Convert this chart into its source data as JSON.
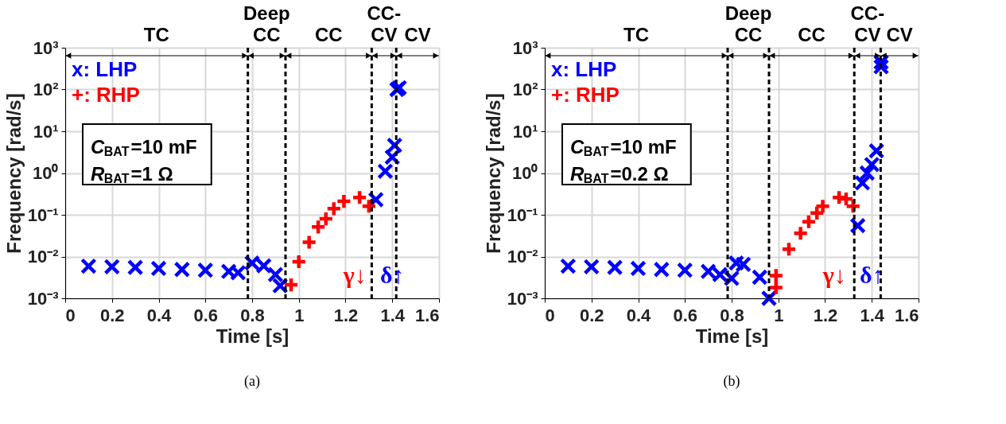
{
  "chart_data": [
    {
      "type": "scatter",
      "xlabel": "Time [s]",
      "ylabel": "Frequency [rad/s]",
      "log": "y",
      "grid": true,
      "legend": "top left",
      "xlim": [
        0,
        1.6
      ],
      "xticks": [
        0,
        0.2,
        0.4,
        0.6,
        0.8,
        1,
        1.2,
        1.4,
        1.6
      ],
      "ylim": [
        0.001,
        1000
      ],
      "yticks": [
        {
          "value": 0.001,
          "label": "10⁻³"
        },
        {
          "value": 0.01,
          "label": "10⁻²"
        },
        {
          "value": 0.1,
          "label": "10⁻¹"
        },
        {
          "value": 1,
          "label": "10⁰"
        },
        {
          "value": 10,
          "label": "10¹"
        },
        {
          "value": 100,
          "label": "10²"
        },
        {
          "value": 1000,
          "label": "10³"
        }
      ],
      "series": [
        {
          "name": "x: LHP",
          "color": "#0000ff",
          "marker": "cross",
          "x": [
            0.1,
            0.2,
            0.3,
            0.4,
            0.5,
            0.6,
            0.7,
            0.74,
            0.8,
            0.85,
            0.9,
            0.92,
            1.33,
            1.37,
            1.4,
            1.41,
            1.42,
            1.43
          ],
          "values": [
            0.0059,
            0.0057,
            0.0055,
            0.0052,
            0.0049,
            0.0047,
            0.0044,
            0.0041,
            0.007,
            0.006,
            0.0037,
            0.002,
            0.23,
            1.1,
            2.4,
            4.6,
            100,
            110
          ]
        },
        {
          "name": "+: RHP",
          "color": "#ff0000",
          "marker": "plus",
          "x": [
            0.967,
            1.0,
            1.044,
            1.083,
            1.116,
            1.15,
            1.193,
            1.26,
            1.3
          ],
          "values": [
            0.0021,
            0.0075,
            0.022,
            0.051,
            0.08,
            0.14,
            0.21,
            0.26,
            0.16
          ]
        }
      ],
      "ref_lines": [
        {
          "axis": "x",
          "value": 0.782,
          "line_style": "dashed"
        },
        {
          "axis": "x",
          "value": 0.943,
          "line_style": "dashed"
        },
        {
          "axis": "x",
          "value": 1.312,
          "line_style": "dashed"
        },
        {
          "axis": "x",
          "value": 1.417,
          "line_style": "dashed"
        }
      ],
      "annotations": [
        "C$_{BAT}$=10 mF",
        "R$_{BAT}$=1 Ω",
        "γ↓",
        "δ↑",
        "(a)",
        "TC",
        "Deep\nCC",
        "CC",
        "CC-\nCV",
        "CV"
      ]
    },
    {
      "type": "scatter",
      "xlabel": "Time [s]",
      "ylabel": "Frequency [rad/s]",
      "log": "y",
      "grid": true,
      "legend": "top left",
      "xlim": [
        0,
        1.6
      ],
      "xticks": [
        0,
        0.2,
        0.4,
        0.6,
        0.8,
        1,
        1.2,
        1.4,
        1.6
      ],
      "ylim": [
        0.001,
        1000
      ],
      "yticks": [
        {
          "value": 0.001,
          "label": "10⁻³"
        },
        {
          "value": 0.01,
          "label": "10⁻²"
        },
        {
          "value": 0.1,
          "label": "10⁻¹"
        },
        {
          "value": 1,
          "label": "10⁰"
        },
        {
          "value": 10,
          "label": "10¹"
        },
        {
          "value": 100,
          "label": "10²"
        },
        {
          "value": 1000,
          "label": "10³"
        }
      ],
      "series": [
        {
          "name": "x: LHP",
          "color": "#0000ff",
          "marker": "cross",
          "x": [
            0.1,
            0.2,
            0.3,
            0.4,
            0.5,
            0.6,
            0.7,
            0.75,
            0.8,
            0.82,
            0.85,
            0.92,
            0.96,
            1.34,
            1.36,
            1.38,
            1.4,
            1.42,
            1.44,
            1.44
          ],
          "values": [
            0.0059,
            0.0057,
            0.0055,
            0.0052,
            0.0049,
            0.0047,
            0.0044,
            0.0037,
            0.003,
            0.007,
            0.0065,
            0.0032,
            0.001,
            0.055,
            0.58,
            1.0,
            1.6,
            3.4,
            450,
            350
          ]
        },
        {
          "name": "+: RHP",
          "color": "#ff0000",
          "marker": "plus",
          "x": [
            0.99,
            0.99,
            1.045,
            1.095,
            1.13,
            1.165,
            1.19,
            1.26,
            1.29,
            1.32
          ],
          "values": [
            0.0018,
            0.0035,
            0.015,
            0.036,
            0.068,
            0.11,
            0.16,
            0.26,
            0.24,
            0.16
          ]
        }
      ],
      "ref_lines": [
        {
          "axis": "x",
          "value": 0.783,
          "line_style": "dashed"
        },
        {
          "axis": "x",
          "value": 0.96,
          "line_style": "dashed"
        },
        {
          "axis": "x",
          "value": 1.325,
          "line_style": "dashed"
        },
        {
          "axis": "x",
          "value": 1.438,
          "line_style": "dashed"
        }
      ],
      "annotations": [
        "C$_{BAT}$=10 mF",
        "R$_{BAT}$=0.2 Ω",
        "γ↓",
        "δ↑",
        "(b)",
        "TC",
        "Deep\nCC",
        "CC",
        "CC-\nCV",
        "CV"
      ]
    }
  ]
}
